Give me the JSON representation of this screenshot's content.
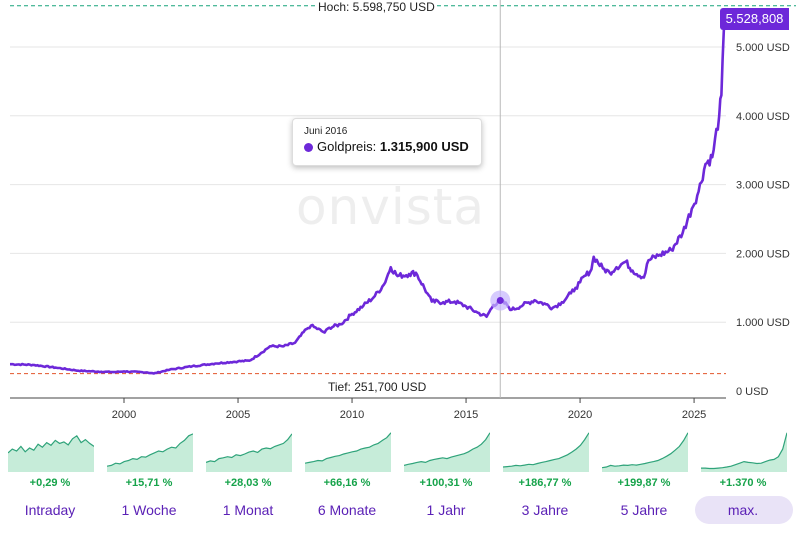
{
  "chart_data": {
    "type": "line",
    "title": "Goldpreis",
    "series_name": "Goldpreis",
    "y_unit": "USD",
    "ylim": [
      0,
      5700000
    ],
    "xlim": [
      1995.0,
      2026.4
    ],
    "y_ticks": [
      {
        "value": 0,
        "label": "0 USD"
      },
      {
        "value": 1000000,
        "label": "1.000 USD"
      },
      {
        "value": 2000000,
        "label": "2.000 USD"
      },
      {
        "value": 3000000,
        "label": "3.000 USD"
      },
      {
        "value": 4000000,
        "label": "4.000 USD"
      },
      {
        "value": 5000000,
        "label": "5.000 USD"
      }
    ],
    "x_ticks": [
      {
        "value": 2000,
        "label": "2000"
      },
      {
        "value": 2005,
        "label": "2005"
      },
      {
        "value": 2010,
        "label": "2010"
      },
      {
        "value": 2015,
        "label": "2015"
      },
      {
        "value": 2020,
        "label": "2020"
      },
      {
        "value": 2025,
        "label": "2025"
      }
    ],
    "x": [
      1995.0,
      1996.0,
      1997.0,
      1998.0,
      1999.0,
      1999.6,
      2000.0,
      2001.0,
      2001.3,
      2002.0,
      2003.0,
      2004.0,
      2005.0,
      2005.5,
      2006.0,
      2006.4,
      2007.0,
      2007.5,
      2008.0,
      2008.2,
      2008.8,
      2009.0,
      2009.5,
      2010.0,
      2010.5,
      2011.0,
      2011.4,
      2011.7,
      2012.0,
      2012.5,
      2012.8,
      2013.3,
      2013.5,
      2014.0,
      2014.5,
      2015.0,
      2015.5,
      2015.9,
      2016.2,
      2016.5,
      2016.8,
      2017.0,
      2017.5,
      2018.0,
      2018.5,
      2018.8,
      2019.2,
      2019.6,
      2019.8,
      2020.0,
      2020.5,
      2020.6,
      2021.0,
      2021.3,
      2021.6,
      2022.0,
      2022.3,
      2022.8,
      2023.0,
      2023.5,
      2024.0,
      2024.5,
      2024.9,
      2025.2,
      2025.5,
      2025.8,
      2026.1,
      2026.2,
      2026.3,
      2026.38
    ],
    "values": [
      390000,
      380000,
      340000,
      295000,
      280000,
      275000,
      285000,
      270000,
      255000,
      310000,
      360000,
      400000,
      430000,
      440000,
      550000,
      650000,
      650000,
      700000,
      900000,
      950000,
      850000,
      920000,
      970000,
      1120000,
      1240000,
      1380000,
      1550000,
      1800000,
      1670000,
      1700000,
      1720000,
      1420000,
      1300000,
      1290000,
      1300000,
      1230000,
      1140000,
      1080000,
      1250000,
      1315900,
      1250000,
      1180000,
      1250000,
      1320000,
      1260000,
      1210000,
      1290000,
      1420000,
      1500000,
      1580000,
      1770000,
      1950000,
      1780000,
      1720000,
      1800000,
      1880000,
      1750000,
      1650000,
      1900000,
      1980000,
      2050000,
      2300000,
      2650000,
      2900000,
      3300000,
      3400000,
      4000000,
      4300000,
      5200000,
      5528808
    ],
    "high": {
      "label": "Hoch: 5.598,750 USD",
      "value": 5598750
    },
    "low": {
      "label": "Tief: 251,700 USD",
      "value": 251700
    },
    "cursor_x": 2016.5,
    "tooltip": {
      "date": "Juni 2016",
      "series": "Goldpreis:",
      "value": "1.315,900 USD",
      "y": 1315900
    },
    "last_value": {
      "label": "5.528,808",
      "value": 5528808
    }
  },
  "watermark": "onvista",
  "ranges": [
    {
      "label": "Intraday",
      "change": "+0,29 %",
      "spark": [
        0.45,
        0.55,
        0.5,
        0.62,
        0.48,
        0.58,
        0.52,
        0.68,
        0.6,
        0.72,
        0.65,
        0.78,
        0.7,
        0.74,
        0.66,
        0.82,
        0.9,
        0.72,
        0.8,
        0.7,
        0.62
      ]
    },
    {
      "label": "1 Woche",
      "change": "+15,71 %",
      "spark": [
        0.1,
        0.12,
        0.18,
        0.16,
        0.22,
        0.25,
        0.3,
        0.28,
        0.35,
        0.34,
        0.4,
        0.45,
        0.5,
        0.48,
        0.55,
        0.6,
        0.58,
        0.7,
        0.78,
        0.9,
        0.95
      ]
    },
    {
      "label": "1 Monat",
      "change": "+28,03 %",
      "spark": [
        0.2,
        0.24,
        0.22,
        0.3,
        0.32,
        0.35,
        0.33,
        0.4,
        0.38,
        0.42,
        0.47,
        0.5,
        0.46,
        0.55,
        0.58,
        0.56,
        0.62,
        0.66,
        0.7,
        0.8,
        0.95
      ]
    },
    {
      "label": "6 Monate",
      "change": "+66,16 %",
      "spark": [
        0.18,
        0.2,
        0.22,
        0.25,
        0.24,
        0.3,
        0.33,
        0.36,
        0.38,
        0.42,
        0.45,
        0.48,
        0.5,
        0.55,
        0.58,
        0.6,
        0.66,
        0.7,
        0.78,
        0.85,
        0.98
      ]
    },
    {
      "label": "1 Jahr",
      "change": "+100,31 %",
      "spark": [
        0.12,
        0.15,
        0.17,
        0.2,
        0.22,
        0.2,
        0.25,
        0.28,
        0.3,
        0.32,
        0.3,
        0.34,
        0.37,
        0.4,
        0.43,
        0.48,
        0.55,
        0.6,
        0.68,
        0.8,
        0.98
      ]
    },
    {
      "label": "3 Jahre",
      "change": "+186,77 %",
      "spark": [
        0.08,
        0.09,
        0.1,
        0.12,
        0.11,
        0.13,
        0.15,
        0.14,
        0.17,
        0.2,
        0.22,
        0.25,
        0.28,
        0.3,
        0.35,
        0.4,
        0.47,
        0.55,
        0.65,
        0.8,
        0.98
      ]
    },
    {
      "label": "5 Jahre",
      "change": "+199,87 %",
      "spark": [
        0.06,
        0.08,
        0.12,
        0.1,
        0.11,
        0.13,
        0.12,
        0.14,
        0.13,
        0.15,
        0.17,
        0.2,
        0.22,
        0.25,
        0.3,
        0.36,
        0.43,
        0.52,
        0.62,
        0.78,
        0.98
      ]
    },
    {
      "label": "max.",
      "change": "+1.370 %",
      "spark": [
        0.05,
        0.05,
        0.04,
        0.04,
        0.05,
        0.06,
        0.08,
        0.1,
        0.14,
        0.18,
        0.22,
        0.2,
        0.19,
        0.17,
        0.18,
        0.22,
        0.26,
        0.28,
        0.35,
        0.55,
        0.98
      ]
    }
  ],
  "active_range": "max."
}
